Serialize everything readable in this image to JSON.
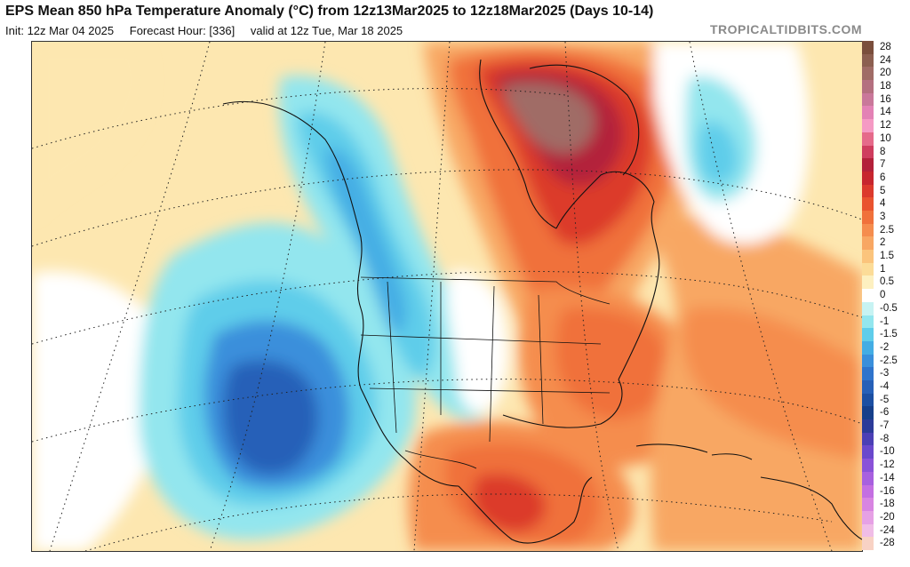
{
  "header": {
    "title": "EPS Mean 850 hPa Temperature Anomaly (°C) from 12z13Mar2025 to 12z18Mar2025 (Days 10-14)",
    "init": "Init: 12z Mar 04 2025",
    "forecast_hour": "Forecast Hour: [336]",
    "valid": "valid at 12z Tue, Mar 18 2025",
    "credit": "TROPICALTIDBITS.COM"
  },
  "map": {
    "region": "North America",
    "variable": "850 hPa temperature anomaly",
    "units": "°C"
  },
  "colorbar": {
    "levels": [
      {
        "label": "28",
        "color": "#7a4e3c"
      },
      {
        "label": "24",
        "color": "#8c5f50"
      },
      {
        "label": "20",
        "color": "#a06c66"
      },
      {
        "label": "18",
        "color": "#b47080"
      },
      {
        "label": "16",
        "color": "#c9789a"
      },
      {
        "label": "14",
        "color": "#e382b5"
      },
      {
        "label": "12",
        "color": "#f59ac4"
      },
      {
        "label": "10",
        "color": "#e56a8a"
      },
      {
        "label": "8",
        "color": "#cf3d5e"
      },
      {
        "label": "7",
        "color": "#b3213a"
      },
      {
        "label": "6",
        "color": "#c7262e"
      },
      {
        "label": "5",
        "color": "#dc3a2c"
      },
      {
        "label": "4",
        "color": "#e9532f"
      },
      {
        "label": "3",
        "color": "#f0713b"
      },
      {
        "label": "2.5",
        "color": "#f58d4e"
      },
      {
        "label": "2",
        "color": "#f8a763"
      },
      {
        "label": "1.5",
        "color": "#fbc47c"
      },
      {
        "label": "1",
        "color": "#fcdc98"
      },
      {
        "label": "0.5",
        "color": "#fdf0c0"
      },
      {
        "label": "0",
        "color": "#ffffff"
      },
      {
        "label": "-0.5",
        "color": "#c7f3f3"
      },
      {
        "label": "-1",
        "color": "#93e6ee"
      },
      {
        "label": "-1.5",
        "color": "#5fcdea"
      },
      {
        "label": "-2",
        "color": "#44ade4"
      },
      {
        "label": "-2.5",
        "color": "#3a8fdb"
      },
      {
        "label": "-3",
        "color": "#2f74cc"
      },
      {
        "label": "-4",
        "color": "#2660b8"
      },
      {
        "label": "-5",
        "color": "#1c4fa2"
      },
      {
        "label": "-6",
        "color": "#163f8a"
      },
      {
        "label": "-7",
        "color": "#2c3b99"
      },
      {
        "label": "-8",
        "color": "#4b3fb5"
      },
      {
        "label": "-10",
        "color": "#6a48cc"
      },
      {
        "label": "-12",
        "color": "#8a52d8"
      },
      {
        "label": "-14",
        "color": "#a860df"
      },
      {
        "label": "-16",
        "color": "#c46fe2"
      },
      {
        "label": "-18",
        "color": "#d885e2"
      },
      {
        "label": "-20",
        "color": "#e6a1e5"
      },
      {
        "label": "-24",
        "color": "#f0bde6"
      },
      {
        "label": "-28",
        "color": "#f8d2c4"
      }
    ]
  }
}
